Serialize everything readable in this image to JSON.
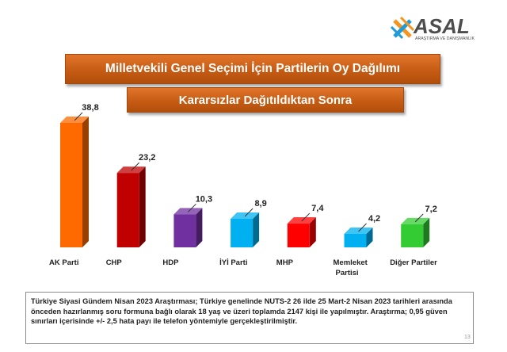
{
  "logo": {
    "name": "ASAL",
    "tagline": "ARAŞTIRMA VE DANIŞMANLIK"
  },
  "chart_data": {
    "type": "bar3d",
    "title": "Milletvekili Genel Seçimi İçin Partilerin Oy Dağılımı",
    "subtitle": "Kararsızlar Dağıtıldıktan Sonra",
    "categories": [
      [
        "AK Parti"
      ],
      [
        "CHP"
      ],
      [
        "HDP"
      ],
      [
        "İYİ Parti"
      ],
      [
        "MHP"
      ],
      [
        "Memleket",
        "Partisi"
      ],
      [
        "Diğer Partiler"
      ]
    ],
    "values": [
      38.8,
      23.2,
      10.3,
      8.9,
      7.4,
      4.2,
      7.2
    ],
    "value_labels": [
      "38,8",
      "23,2",
      "10,3",
      "8,9",
      "7,4",
      "4,2",
      "7,2"
    ],
    "colors": [
      "#ff6a00",
      "#c00000",
      "#7030a0",
      "#00b0f0",
      "#ff0000",
      "#00b0f0",
      "#33cc33"
    ]
  },
  "footnote": [
    "Türkiye Siyasi Gündem Nisan 2023 Araştırması; Türkiye genelinde NUTS-2 26 ilde 25 Mart-2 Nisan 2023 tarihleri arasında",
    "önceden hazırlanmış soru formuna bağlı olarak 18 yaş ve üzeri toplamda 2147 kişi ile yapılmıştır. Araştırma; 0,95 güven",
    "sınırları içerisinde +/- 2,5 hata payı ile telefon yöntemiyle gerçekleştirilmiştir."
  ],
  "page_number": "13"
}
